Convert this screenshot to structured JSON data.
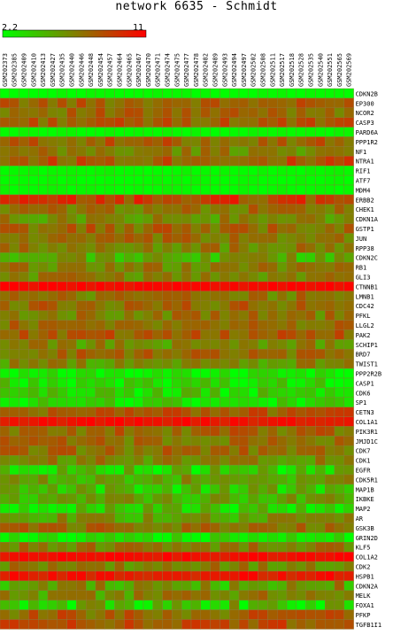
{
  "chart_data": {
    "type": "heatmap",
    "title": "network 6635 - Schmidt",
    "color_scale": {
      "min": 2.2,
      "max": 11,
      "min_label": "2.2",
      "max_label": "11",
      "low_color": "#00ff00",
      "high_color": "#ff0000",
      "mid_color": "#808000"
    },
    "columns": [
      "GSM202373",
      "GSM202385",
      "GSM202409",
      "GSM202410",
      "GSM202413",
      "GSM202427",
      "GSM202435",
      "GSM202440",
      "GSM202446",
      "GSM202448",
      "GSM202454",
      "GSM202457",
      "GSM202464",
      "GSM202465",
      "GSM202467",
      "GSM202470",
      "GSM202471",
      "GSM202474",
      "GSM202475",
      "GSM202477",
      "GSM202478",
      "GSM202482",
      "GSM202489",
      "GSM202493",
      "GSM202494",
      "GSM202497",
      "GSM202502",
      "GSM202508",
      "GSM202511",
      "GSM202517",
      "GSM202518",
      "GSM202528",
      "GSM202535",
      "GSM202540",
      "GSM202551",
      "GSM202565",
      "GSM202569"
    ],
    "rows": [
      "CDKN2B",
      "EP300",
      "NCOR2",
      "CASP3",
      "PARD6A",
      "PPP1R2",
      "NF1",
      "NTRA1",
      "RIF1",
      "ATF7",
      "MDM4",
      "ERBB2",
      "CHEK1",
      "CDKN1A",
      "GSTP1",
      "JUN",
      "RPP38",
      "CDKN2C",
      "RB1",
      "GLI3",
      "CTNNB1",
      "LMNB1",
      "CDC42",
      "PFKL",
      "LLGL2",
      "PAK2",
      "SCHIP1",
      "BRD7",
      "TWIST1",
      "PPP2R2B",
      "CASP1",
      "CDK6",
      "SP1",
      "CETN3",
      "COL1A1",
      "PIK3R1",
      "JMJD1C",
      "CDK7",
      "CDK1",
      "EGFR",
      "CDK5R1",
      "MAP1B",
      "IKBKE",
      "MAP2",
      "AR",
      "GSK3B",
      "GRIN2D",
      "KLF5",
      "COL1A2",
      "CDK2",
      "HSPB1",
      "CDKN2A",
      "MELK",
      "FOXA1",
      "PFKP",
      "TGFB1I1"
    ],
    "row_base": [
      2.3,
      7.6,
      7.4,
      7.8,
      2.4,
      7.6,
      6.6,
      8.0,
      2.4,
      2.3,
      2.4,
      8.7,
      7.0,
      6.2,
      7.4,
      7.0,
      6.6,
      5.2,
      6.6,
      6.6,
      10.7,
      7.0,
      7.4,
      6.8,
      7.2,
      7.8,
      6.2,
      7.4,
      6.0,
      2.8,
      3.4,
      3.6,
      3.3,
      8.0,
      10.4,
      7.4,
      7.2,
      7.2,
      6.4,
      3.8,
      5.6,
      4.3,
      5.2,
      4.0,
      5.6,
      7.2,
      3.0,
      6.8,
      10.6,
      6.6,
      10.2,
      5.6,
      6.2,
      4.3,
      7.6,
      8.2
    ],
    "row_spread": [
      0.3,
      1.2,
      1.2,
      1.2,
      0.3,
      1.3,
      1.4,
      1.4,
      0.3,
      0.3,
      0.3,
      1.6,
      1.3,
      1.4,
      1.4,
      1.3,
      1.4,
      1.6,
      1.3,
      1.3,
      0.5,
      1.3,
      1.3,
      1.3,
      1.3,
      1.2,
      1.4,
      1.3,
      1.6,
      1.0,
      1.6,
      1.6,
      1.4,
      1.3,
      0.7,
      1.3,
      1.2,
      1.3,
      1.4,
      2.2,
      1.6,
      1.8,
      1.6,
      1.8,
      1.6,
      1.3,
      1.4,
      1.3,
      0.6,
      1.3,
      0.8,
      2.2,
      1.8,
      2.4,
      1.6,
      1.2
    ]
  }
}
